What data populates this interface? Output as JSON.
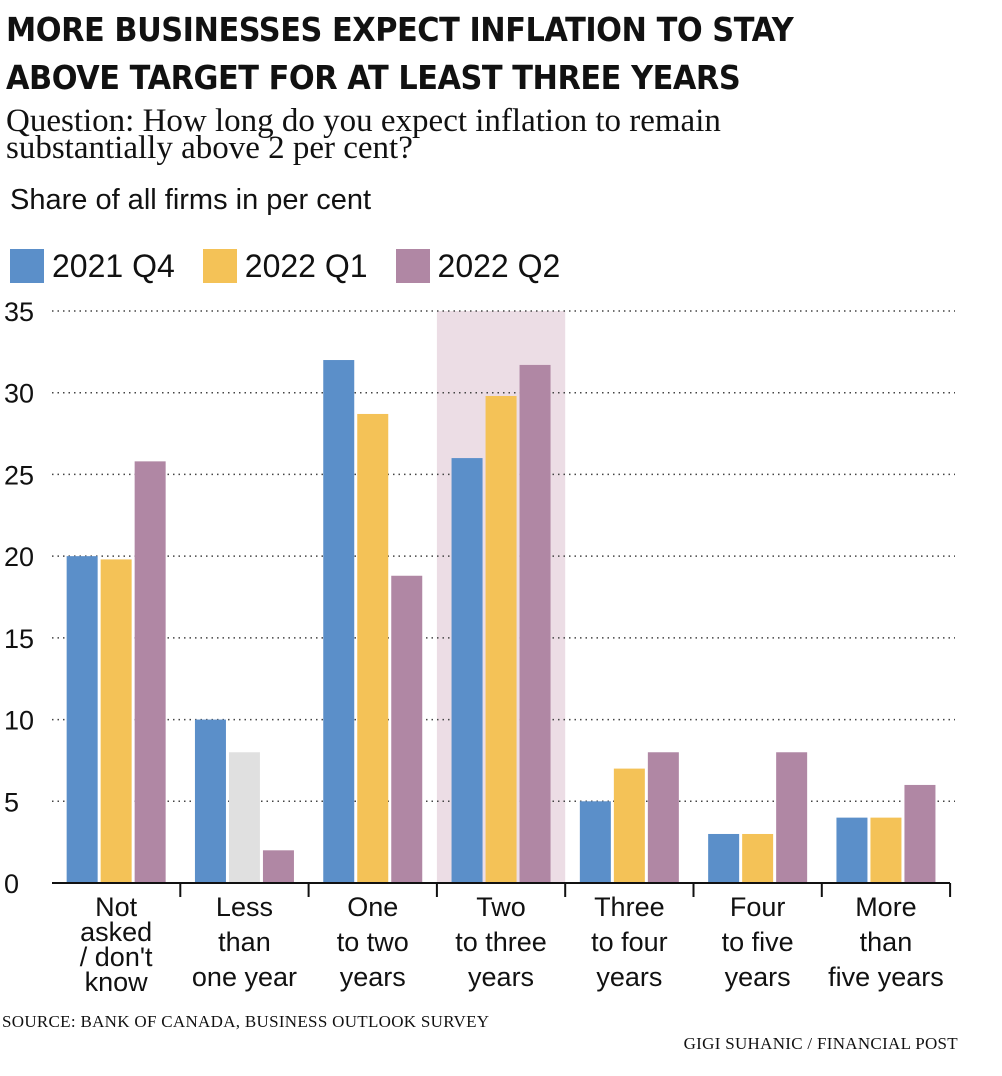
{
  "title_line1": "MORE BUSINESSES EXPECT INFLATION TO STAY",
  "title_line2": "ABOVE TARGET FOR AT LEAST THREE YEARS",
  "question_line1": "Question: How long do you expect inflation to remain",
  "question_line2": "substantially above 2 per cent?",
  "units": "Share of all firms in per cent",
  "source": "SOURCE: BANK OF CANADA, BUSINESS OUTLOOK SURVEY",
  "credit": "GIGI SUHANIC  / FINANCIAL POST",
  "chart_data": {
    "type": "bar",
    "categories": [
      [
        "Not",
        "asked",
        "/ don't",
        "know"
      ],
      [
        "Less",
        "than",
        "one year"
      ],
      [
        "One",
        "to two",
        "years"
      ],
      [
        "Two",
        "to three",
        "years"
      ],
      [
        "Three",
        "to four",
        "years"
      ],
      [
        "Four",
        "to five",
        "years"
      ],
      [
        "More",
        "than",
        "five years"
      ]
    ],
    "series": [
      {
        "name": "2021 Q4",
        "color": "#5b8fc9",
        "values": [
          20,
          10,
          32,
          26,
          5,
          3,
          4
        ]
      },
      {
        "name": "2022 Q1",
        "color": "#f4c257",
        "values": [
          19.8,
          8,
          28.7,
          29.8,
          7,
          3,
          4
        ]
      },
      {
        "name": "2022 Q2",
        "color": "#b087a4",
        "values": [
          25.8,
          2,
          18.8,
          31.7,
          8,
          8,
          6
        ]
      }
    ],
    "ylim": [
      0,
      35
    ],
    "yticks": [
      0,
      5,
      10,
      15,
      20,
      25,
      30,
      35
    ],
    "highlight_category": 3,
    "highlight_color": "#ecdde5",
    "greyed_bar": {
      "series": 1,
      "category": 1,
      "color": "#e0e0e0"
    },
    "grid": "dotted"
  }
}
